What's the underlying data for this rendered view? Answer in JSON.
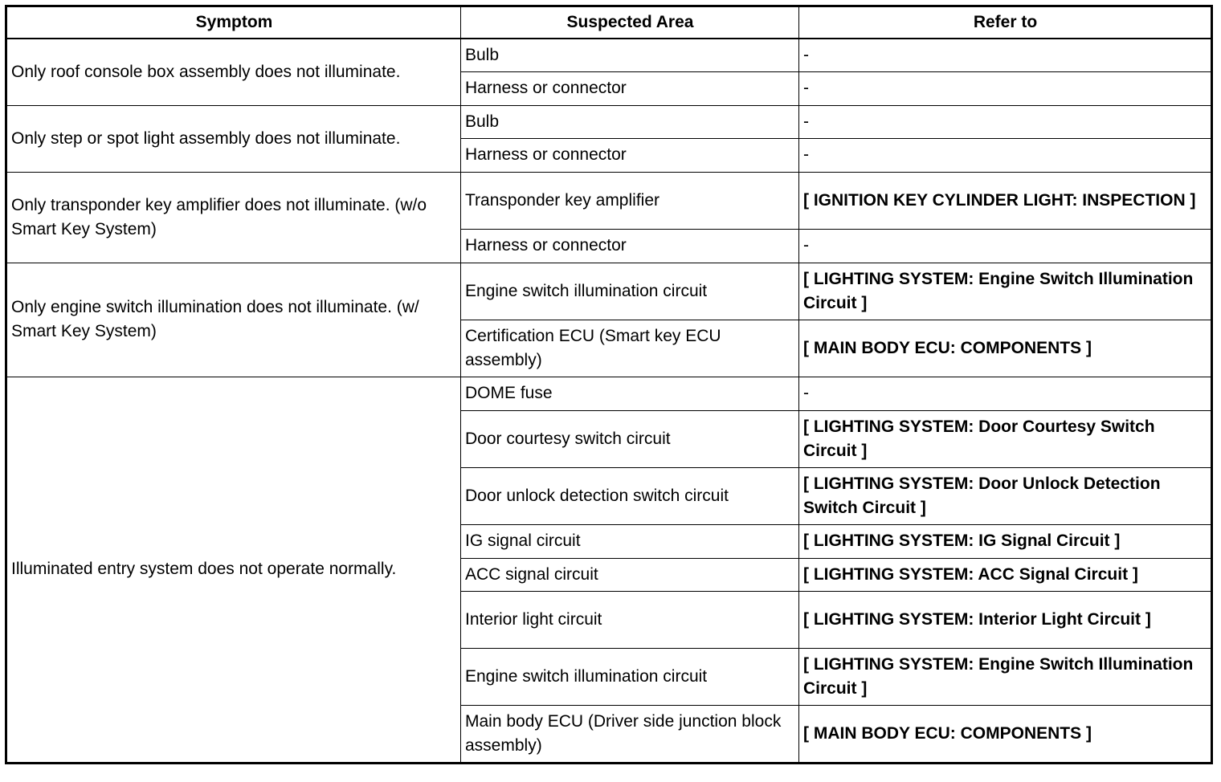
{
  "headers": [
    "Symptom",
    "Suspected Area",
    "Refer to"
  ],
  "groups": [
    {
      "symptom": "Only roof console box assembly does not illuminate.",
      "items": [
        {
          "area": "Bulb",
          "ref": "-"
        },
        {
          "area": "Harness or connector",
          "ref": "-"
        }
      ]
    },
    {
      "symptom": "Only step or spot light assembly does not illuminate.",
      "items": [
        {
          "area": "Bulb",
          "ref": "-"
        },
        {
          "area": "Harness or connector",
          "ref": "-"
        }
      ]
    },
    {
      "symptom": "Only transponder key amplifier does not illuminate. (w/o Smart Key System)",
      "items": [
        {
          "area": "Transponder key amplifier",
          "ref": "[ IGNITION KEY CYLINDER LIGHT: INSPECTION ]"
        },
        {
          "area": "Harness or connector",
          "ref": "-"
        }
      ]
    },
    {
      "symptom": "Only engine switch illumination does not illuminate. (w/ Smart Key System)",
      "items": [
        {
          "area": "Engine switch illumination circuit",
          "ref": "[ LIGHTING SYSTEM: Engine Switch Illumination Circuit ]"
        },
        {
          "area": "Certification ECU (Smart key ECU assembly)",
          "ref": "[ MAIN BODY ECU: COMPONENTS ]"
        }
      ]
    },
    {
      "symptom": "Illuminated entry system does not operate normally.",
      "items": [
        {
          "area": "DOME fuse",
          "ref": "-"
        },
        {
          "area": "Door courtesy switch circuit",
          "ref": "[ LIGHTING SYSTEM: Door Courtesy Switch Circuit ]"
        },
        {
          "area": "Door unlock detection switch circuit",
          "ref": "[ LIGHTING SYSTEM: Door Unlock Detection Switch Circuit ]"
        },
        {
          "area": "IG signal circuit",
          "ref": "[ LIGHTING SYSTEM: IG Signal Circuit ]"
        },
        {
          "area": "ACC signal circuit",
          "ref": "[ LIGHTING SYSTEM: ACC Signal Circuit ]"
        },
        {
          "area": "Interior light circuit",
          "ref": "[ LIGHTING SYSTEM: Interior Light Circuit ]"
        },
        {
          "area": "Engine switch illumination circuit",
          "ref": "[ LIGHTING SYSTEM: Engine Switch Illumination Circuit ]"
        },
        {
          "area": "Main body ECU (Driver side junction block assembly)",
          "ref": "[ MAIN BODY ECU: COMPONENTS ]"
        }
      ]
    }
  ]
}
